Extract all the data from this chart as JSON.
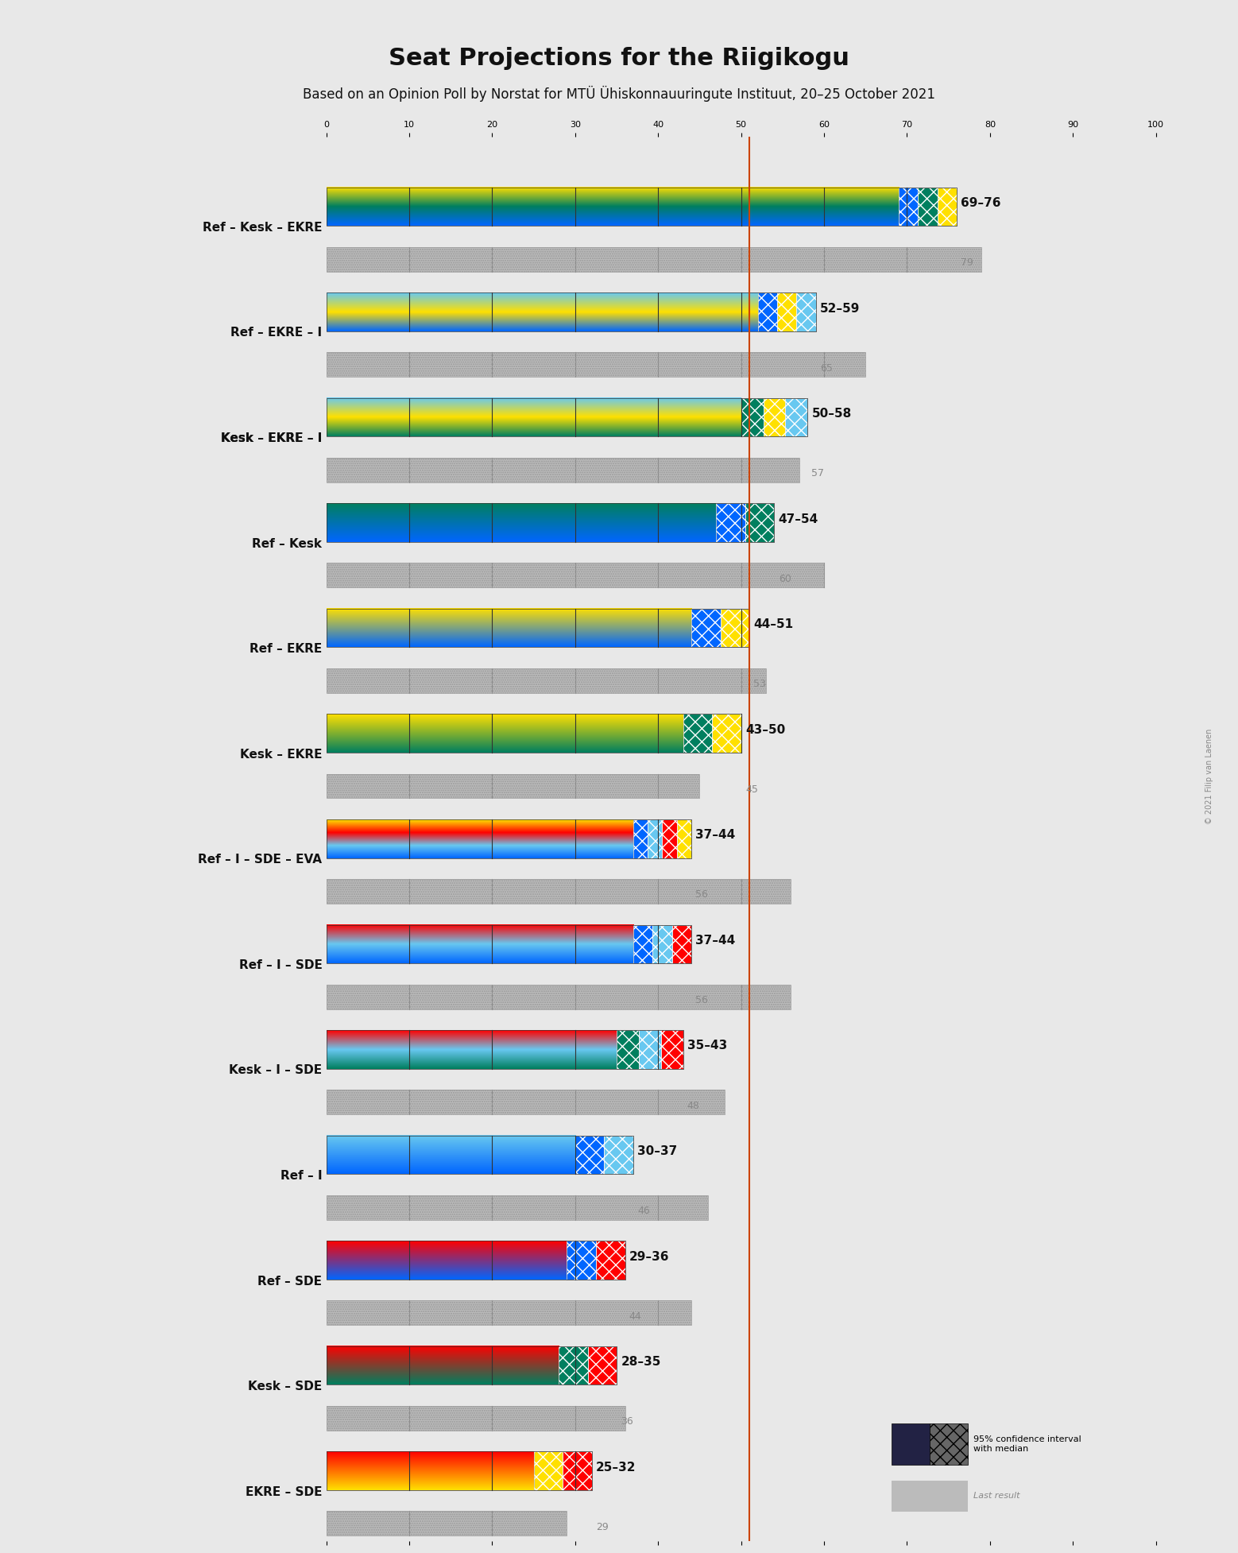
{
  "title": "Seat Projections for the Riigikogu",
  "subtitle": "Based on an Opinion Poll by Norstat for MTÜ Ühiskonnauuringute Instituut, 20–25 October 2021",
  "copyright": "© 2021 Filip van Laenen",
  "coalitions": [
    {
      "name": "Ref – Kesk – EKRE",
      "underline": false,
      "ci_low": 69,
      "ci_high": 76,
      "median": 72,
      "last": 79,
      "parties": [
        "Ref",
        "Kesk",
        "EKRE"
      ],
      "colors": [
        "#0066FF",
        "#007F5F",
        "#FFE000"
      ]
    },
    {
      "name": "Ref – EKRE – I",
      "underline": false,
      "ci_low": 52,
      "ci_high": 59,
      "median": 55,
      "last": 65,
      "parties": [
        "Ref",
        "EKRE",
        "I"
      ],
      "colors": [
        "#0066FF",
        "#FFE000",
        "#68C8F0"
      ]
    },
    {
      "name": "Kesk – EKRE – I",
      "underline": true,
      "ci_low": 50,
      "ci_high": 58,
      "median": 54,
      "last": 57,
      "parties": [
        "Kesk",
        "EKRE",
        "I"
      ],
      "colors": [
        "#007F5F",
        "#FFE000",
        "#68C8F0"
      ]
    },
    {
      "name": "Ref – Kesk",
      "underline": false,
      "ci_low": 47,
      "ci_high": 54,
      "median": 50,
      "last": 60,
      "parties": [
        "Ref",
        "Kesk"
      ],
      "colors": [
        "#0066FF",
        "#007F5F"
      ]
    },
    {
      "name": "Ref – EKRE",
      "underline": false,
      "ci_low": 44,
      "ci_high": 51,
      "median": 47,
      "last": 53,
      "parties": [
        "Ref",
        "EKRE"
      ],
      "colors": [
        "#0066FF",
        "#FFE000"
      ]
    },
    {
      "name": "Kesk – EKRE",
      "underline": false,
      "ci_low": 43,
      "ci_high": 50,
      "median": 46,
      "last": 45,
      "parties": [
        "Kesk",
        "EKRE"
      ],
      "colors": [
        "#007F5F",
        "#FFE000"
      ]
    },
    {
      "name": "Ref – I – SDE – EVA",
      "underline": false,
      "ci_low": 37,
      "ci_high": 44,
      "median": 40,
      "last": 56,
      "parties": [
        "Ref",
        "I",
        "SDE",
        "EVA"
      ],
      "colors": [
        "#0066FF",
        "#68C8F0",
        "#FF0000",
        "#FFE000"
      ]
    },
    {
      "name": "Ref – I – SDE",
      "underline": false,
      "ci_low": 37,
      "ci_high": 44,
      "median": 40,
      "last": 56,
      "parties": [
        "Ref",
        "I",
        "SDE"
      ],
      "colors": [
        "#0066FF",
        "#68C8F0",
        "#FF0000"
      ]
    },
    {
      "name": "Kesk – I – SDE",
      "underline": false,
      "ci_low": 35,
      "ci_high": 43,
      "median": 39,
      "last": 48,
      "parties": [
        "Kesk",
        "I",
        "SDE"
      ],
      "colors": [
        "#007F5F",
        "#68C8F0",
        "#FF0000"
      ]
    },
    {
      "name": "Ref – I",
      "underline": false,
      "ci_low": 30,
      "ci_high": 37,
      "median": 33,
      "last": 46,
      "parties": [
        "Ref",
        "I"
      ],
      "colors": [
        "#0066FF",
        "#68C8F0"
      ]
    },
    {
      "name": "Ref – SDE",
      "underline": false,
      "ci_low": 29,
      "ci_high": 36,
      "median": 32,
      "last": 44,
      "parties": [
        "Ref",
        "SDE"
      ],
      "colors": [
        "#0066FF",
        "#FF0000"
      ]
    },
    {
      "name": "Kesk – SDE",
      "underline": false,
      "ci_low": 28,
      "ci_high": 35,
      "median": 31,
      "last": 36,
      "parties": [
        "Kesk",
        "SDE"
      ],
      "colors": [
        "#007F5F",
        "#FF0000"
      ]
    },
    {
      "name": "EKRE – SDE",
      "underline": false,
      "ci_low": 25,
      "ci_high": 32,
      "median": 28,
      "last": 29,
      "parties": [
        "EKRE",
        "SDE"
      ],
      "colors": [
        "#FFE000",
        "#FF0000"
      ]
    }
  ],
  "majority_line": 51,
  "xlim": [
    0,
    101
  ],
  "xticks": [
    0,
    10,
    20,
    30,
    40,
    50,
    60,
    70,
    80,
    90,
    100
  ],
  "bar_height": 0.55,
  "last_bar_height": 0.35,
  "background_color": "#E8E8E8",
  "majority_color": "#CC4400",
  "ci_box_colors": {
    "Ref": "#0066FF",
    "Kesk": "#007F5F",
    "EKRE": "#FFE000",
    "I": "#68C8F0",
    "SDE": "#FF0000",
    "EVA": "#FFE000"
  }
}
